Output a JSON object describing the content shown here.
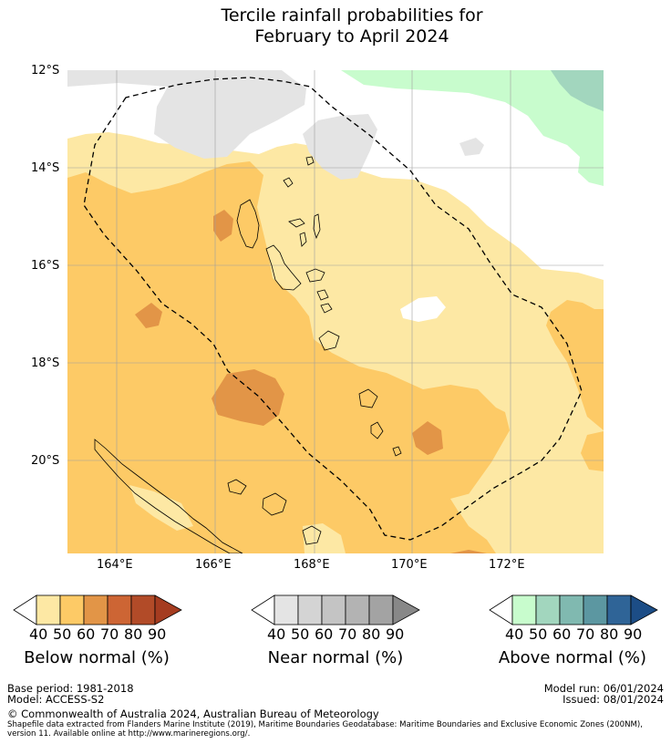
{
  "title": {
    "line1": "Tercile rainfall probabilities for",
    "line2": "February to April 2024"
  },
  "map": {
    "lat_labels": [
      "12°S",
      "14°S",
      "16°S",
      "18°S",
      "20°S"
    ],
    "lon_labels": [
      "164°E",
      "166°E",
      "168°E",
      "170°E",
      "172°E"
    ],
    "lon_range_deg_e": [
      163,
      173.8
    ],
    "lat_range_deg_s": [
      12,
      21.9
    ],
    "colors": {
      "below_40_50": "#fde8a4",
      "below_50_60": "#fdca66",
      "below_60_70": "#e29547",
      "near_40_50": "#e4e4e4",
      "above_40_50": "#c8fccd",
      "above_50_60": "#a2d6be",
      "no_signal": "#ffffff"
    }
  },
  "legends": {
    "below": {
      "title": "Below normal (%)",
      "ticks": [
        "40",
        "50",
        "60",
        "70",
        "80",
        "90"
      ],
      "colors": [
        "#ffffff",
        "#fde8a4",
        "#fdca66",
        "#e29547",
        "#cd6534",
        "#b24b28",
        "#a53c20"
      ]
    },
    "near": {
      "title": "Near normal (%)",
      "ticks": [
        "40",
        "50",
        "60",
        "70",
        "80",
        "90"
      ],
      "colors": [
        "#ffffff",
        "#e4e4e4",
        "#d4d4d4",
        "#c4c4c4",
        "#b3b3b3",
        "#a3a3a3",
        "#888888"
      ]
    },
    "above": {
      "title": "Above normal (%)",
      "ticks": [
        "40",
        "50",
        "60",
        "70",
        "80",
        "90"
      ],
      "colors": [
        "#ffffff",
        "#c8fccd",
        "#a2d6be",
        "#80b9b0",
        "#5c97a1",
        "#2f6497",
        "#1c4d86"
      ]
    }
  },
  "footer": {
    "base_period": "Base period: 1981-2018",
    "model": "Model: ACCESS-S2",
    "model_run": "Model run: 06/01/2024",
    "issued": "Issued: 08/01/2024",
    "copyright": "© Commonwealth of Australia 2024, Australian Bureau of Meteorology",
    "shapefile_note": "Shapefile data extracted from Flanders Marine Institute (2019), Maritime Boundaries Geodatabase: Maritime Boundaries and Exclusive Economic Zones (200NM), version 11. Available online at http://www.marineregions.org/."
  }
}
